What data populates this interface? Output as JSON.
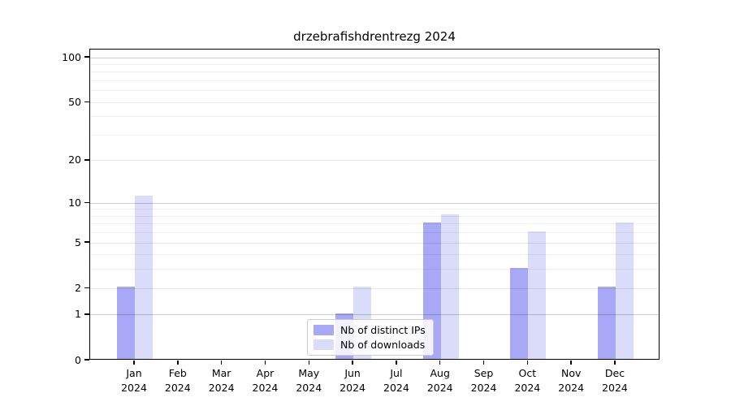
{
  "chart_data": {
    "type": "bar",
    "title": "drzebrafishdrentrezg 2024",
    "x_year": "2024",
    "categories": [
      "Jan",
      "Feb",
      "Mar",
      "Apr",
      "May",
      "Jun",
      "Jul",
      "Aug",
      "Sep",
      "Oct",
      "Nov",
      "Dec"
    ],
    "series": [
      {
        "name": "Nb of distinct IPs",
        "color": "#a8a8f7",
        "values": [
          2,
          0,
          0,
          0,
          0,
          1,
          0,
          7,
          0,
          3,
          0,
          2
        ]
      },
      {
        "name": "Nb of downloads",
        "color": "#dbdbfa",
        "values": [
          11,
          0,
          0,
          0,
          0,
          2,
          0,
          8,
          0,
          6,
          0,
          7
        ]
      }
    ],
    "yscale": "log1p",
    "yticks": [
      0,
      1,
      2,
      5,
      10,
      20,
      50,
      100
    ],
    "minor_yticks": [
      3,
      4,
      6,
      7,
      8,
      9,
      30,
      40,
      60,
      70,
      80,
      90
    ],
    "ylim": [
      0,
      113
    ],
    "grid": true,
    "legend_position": "lower center"
  }
}
